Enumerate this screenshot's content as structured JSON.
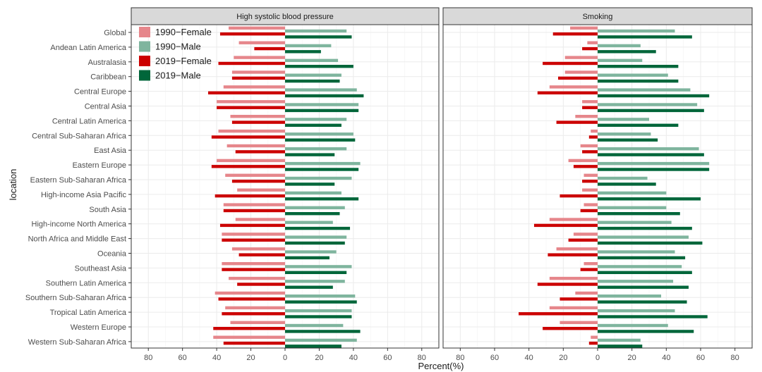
{
  "chart_data": {
    "type": "bar",
    "orientation": "horizontal",
    "xlabel": "Percent(%)",
    "ylabel": "location",
    "xlim": [
      -90,
      90
    ],
    "x_ticks": [
      -80,
      -60,
      -40,
      -20,
      0,
      20,
      40,
      60,
      80
    ],
    "x_tick_labels": [
      "80",
      "60",
      "40",
      "20",
      "0",
      "20",
      "40",
      "60",
      "80"
    ],
    "grid": true,
    "legend_position": "top-left",
    "colors": {
      "1990-Female": "#e6868b",
      "1990-Male": "#7fb59e",
      "2019-Female": "#cc0000",
      "2019-Male": "#00663a"
    },
    "legend": [
      "1990−Female",
      "1990−Male",
      "2019−Female",
      "2019−Male"
    ],
    "categories": [
      "Global",
      "Andean Latin America",
      "Australasia",
      "Caribbean",
      "Central Europe",
      "Central Asia",
      "Central Latin America",
      "Central Sub-Saharan Africa",
      "East Asia",
      "Eastern Europe",
      "Eastern Sub-Saharan Africa",
      "High-income Asia Pacific",
      "South Asia",
      "High-income North America",
      "North Africa and Middle East",
      "Oceania",
      "Southeast Asia",
      "Southern Latin America",
      "Southern Sub-Saharan Africa",
      "Tropical Latin America",
      "Western Europe",
      "Western Sub-Saharan Africa"
    ],
    "panels": [
      {
        "title": "High systolic blood pressure",
        "series": [
          {
            "name": "1990−Female",
            "values": [
              -33,
              -27,
              -30,
              -31,
              -36,
              -40,
              -32,
              -39,
              -34,
              -40,
              -35,
              -28,
              -36,
              -29,
              -37,
              -31,
              -37,
              -33,
              -41,
              -35,
              -32,
              -42
            ]
          },
          {
            "name": "1990−Male",
            "values": [
              36,
              27,
              31,
              33,
              42,
              43,
              36,
              40,
              36,
              44,
              39,
              33,
              35,
              28,
              36,
              30,
              39,
              35,
              41,
              39,
              34,
              42
            ]
          },
          {
            "name": "2019−Female",
            "values": [
              -38,
              -18,
              -39,
              -31,
              -45,
              -40,
              -31,
              -43,
              -29,
              -43,
              -31,
              -41,
              -36,
              -38,
              -37,
              -27,
              -37,
              -28,
              -39,
              -37,
              -42,
              -36
            ]
          },
          {
            "name": "2019−Male",
            "values": [
              39,
              21,
              40,
              32,
              46,
              43,
              33,
              41,
              29,
              43,
              29,
              43,
              32,
              38,
              35,
              26,
              36,
              28,
              42,
              39,
              44,
              33
            ]
          }
        ]
      },
      {
        "title": "Smoking",
        "series": [
          {
            "name": "1990−Female",
            "values": [
              -16,
              -6,
              -19,
              -19,
              -28,
              -9,
              -13,
              -4,
              -10,
              -17,
              -8,
              -9,
              -8,
              -28,
              -14,
              -24,
              -8,
              -28,
              -13,
              -28,
              -22,
              -4
            ]
          },
          {
            "name": "1990−Male",
            "values": [
              45,
              25,
              26,
              41,
              54,
              58,
              30,
              31,
              59,
              65,
              29,
              40,
              40,
              43,
              53,
              45,
              49,
              44,
              37,
              45,
              41,
              25
            ]
          },
          {
            "name": "2019−Female",
            "values": [
              -26,
              -9,
              -32,
              -23,
              -35,
              -9,
              -24,
              -5,
              -9,
              -14,
              -9,
              -22,
              -10,
              -37,
              -17,
              -29,
              -10,
              -35,
              -22,
              -46,
              -32,
              -5
            ]
          },
          {
            "name": "2019−Male",
            "values": [
              55,
              34,
              47,
              47,
              65,
              62,
              47,
              35,
              62,
              65,
              34,
              60,
              48,
              55,
              61,
              51,
              55,
              53,
              52,
              64,
              56,
              26
            ]
          }
        ]
      }
    ]
  }
}
